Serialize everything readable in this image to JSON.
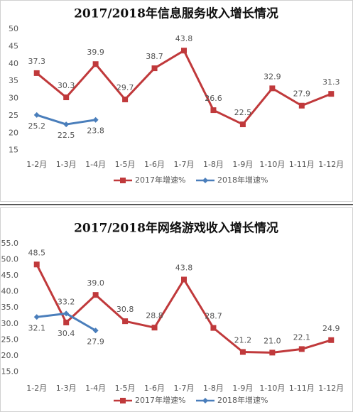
{
  "chart_data": [
    {
      "type": "line",
      "title": "2017/2018年信息服务收入增长情况",
      "categories": [
        "1-2月",
        "1-3月",
        "1-4月",
        "1-5月",
        "1-6月",
        "1-7月",
        "1-8月",
        "1-9月",
        "1-10月",
        "1-11月",
        "1-12月"
      ],
      "series": [
        {
          "name": "2017年增速%",
          "color": "#c0393b",
          "marker": "square",
          "values": [
            37.3,
            30.3,
            39.9,
            29.7,
            38.7,
            43.8,
            26.6,
            22.5,
            32.9,
            27.9,
            31.3
          ]
        },
        {
          "name": "2018年增速%",
          "color": "#4a7ebb",
          "marker": "diamond",
          "values": [
            25.2,
            22.5,
            23.8,
            null,
            null,
            null,
            null,
            null,
            null,
            null,
            null
          ]
        }
      ],
      "ylim": [
        10,
        50
      ],
      "yticks": [
        15,
        20,
        25,
        30,
        35,
        40,
        45,
        50
      ],
      "grid": false,
      "legend": "bottom"
    },
    {
      "type": "line",
      "title": "2017/2018年网络游戏收入增长情况",
      "categories": [
        "1-2月",
        "1-3月",
        "1-4月",
        "1-5月",
        "1-6月",
        "1-7月",
        "1-8月",
        "1-9月",
        "1-10月",
        "1-11月",
        "1-12月"
      ],
      "series": [
        {
          "name": "2017年增速%",
          "color": "#c0393b",
          "marker": "square",
          "values": [
            48.5,
            30.4,
            39,
            30.8,
            28.8,
            43.8,
            28.7,
            21.2,
            21,
            22.1,
            24.9
          ],
          "value_labels": [
            "48.5",
            "30.4",
            "39.0",
            "30.8",
            "28.8",
            "43.8",
            "28.7",
            "21.2",
            "21.0",
            "22.1",
            "24.9"
          ]
        },
        {
          "name": "2018年增速%",
          "color": "#4a7ebb",
          "marker": "diamond",
          "values": [
            32.1,
            33.2,
            27.9,
            null,
            null,
            null,
            null,
            null,
            null,
            null,
            null
          ],
          "value_labels": [
            "32.1",
            "33.2",
            "27.9",
            null,
            null,
            null,
            null,
            null,
            null,
            null,
            null
          ]
        }
      ],
      "ylim": [
        10,
        55
      ],
      "yticks": [
        {
          "value": 15,
          "label": "15.0"
        },
        {
          "value": 20,
          "label": "20.0"
        },
        {
          "value": 25,
          "label": "25.0"
        },
        {
          "value": 30,
          "label": "30.0"
        },
        {
          "value": 35,
          "label": "35.0"
        },
        {
          "value": 40,
          "label": "40.0"
        },
        {
          "value": 45,
          "label": "45.0"
        },
        {
          "value": 50,
          "label": "50.0"
        },
        {
          "value": 55,
          "label": "55.0"
        }
      ],
      "grid": false,
      "legend": "bottom"
    }
  ]
}
